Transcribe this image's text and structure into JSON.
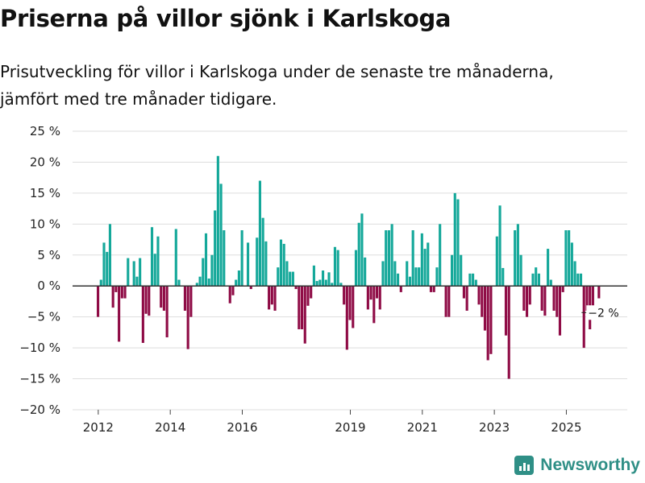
{
  "title": "Priserna på villor sjönk i Karlskoga",
  "subtitle_line1": "Prisutveckling för villor i Karlskoga under de senaste tre månaderna,",
  "subtitle_line2": "jämfört med tre månader tidigare.",
  "brand": "Newsworthy",
  "colors": {
    "positive": "#15a89a",
    "negative": "#8f0c46",
    "grid": "#dddddd",
    "zero": "#333333"
  },
  "chart_data": {
    "type": "bar",
    "title": "Priserna på villor sjönk i Karlskoga",
    "xlabel": "",
    "ylabel": "",
    "unit": "%",
    "ylim": [
      -20,
      25
    ],
    "yticks": [
      25,
      20,
      15,
      10,
      5,
      0,
      -5,
      -10,
      -15,
      -20
    ],
    "ytick_labels": [
      "25 %",
      "20 %",
      "15 %",
      "10 %",
      "5 %",
      "0 %",
      "−5 %",
      "−10 %",
      "−15 %",
      "−20 %"
    ],
    "x_tick_labels": [
      "2012",
      "2014",
      "2016",
      "2019",
      "2021",
      "2023",
      "2025"
    ],
    "x_tick_positions": [
      2012,
      2014,
      2016,
      2019,
      2021,
      2023,
      2025
    ],
    "x_start": 2012.0,
    "x_step": 0.0833,
    "last_label": "−2 %",
    "values": [
      -5,
      1,
      7,
      5.5,
      10,
      -3.5,
      -1,
      -9,
      -2,
      -2,
      4.5,
      0,
      4,
      1.5,
      4.5,
      -9.2,
      -4.5,
      -4.8,
      9.5,
      5.2,
      8,
      -3.5,
      -4,
      -8.3,
      0,
      0,
      9.2,
      1,
      0,
      -4,
      -10.2,
      -5,
      0,
      0.5,
      1.5,
      4.5,
      8.5,
      1.2,
      5,
      12.2,
      21,
      16.5,
      9,
      0,
      -2.8,
      -1.5,
      1,
      2.5,
      9,
      0,
      7,
      -0.5,
      0,
      7.8,
      17,
      11,
      7.2,
      -3.8,
      -3,
      -4,
      3,
      7.5,
      6.8,
      4,
      2.3,
      2.3,
      -0.5,
      -7,
      -7,
      -9.3,
      -3.2,
      -2,
      3.3,
      0.8,
      1,
      2.5,
      1,
      2.2,
      0.5,
      6.3,
      5.8,
      0.5,
      -3,
      -10.3,
      -5.5,
      -6.8,
      5.8,
      10.2,
      11.7,
      4.6,
      -3.8,
      -2.2,
      -6,
      -2,
      -3.8,
      4,
      9,
      9,
      10,
      4,
      2,
      -1,
      0,
      4,
      1.5,
      9,
      3,
      3,
      8.5,
      6,
      7,
      -1,
      -1,
      3,
      10,
      0,
      -5,
      -5,
      5,
      15,
      14,
      5,
      -2,
      -4,
      2,
      2,
      1,
      -3,
      -5,
      -7.2,
      -12,
      -11,
      0,
      8,
      13,
      2.9,
      -8,
      -15,
      0,
      9,
      10,
      5,
      -4,
      -5,
      -3,
      2,
      3,
      2,
      -4,
      -4.8,
      6,
      1,
      -4,
      -5,
      -8,
      -1,
      9,
      9,
      7,
      4,
      2,
      2,
      -10,
      -4,
      -7,
      -3.5,
      0,
      -2
    ]
  }
}
